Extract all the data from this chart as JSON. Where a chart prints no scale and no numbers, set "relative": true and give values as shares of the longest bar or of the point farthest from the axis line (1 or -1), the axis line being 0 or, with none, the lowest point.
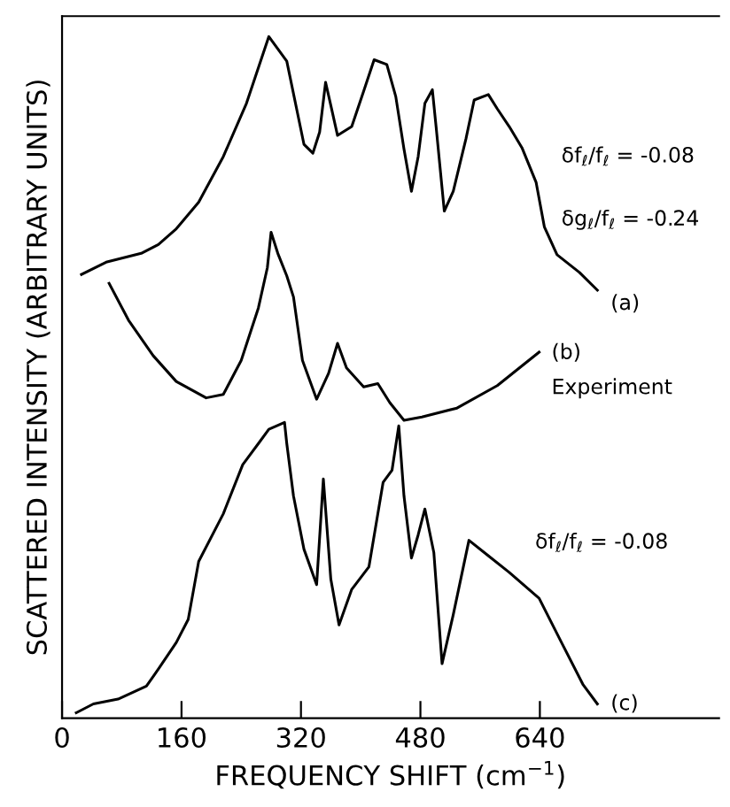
{
  "chart_data": {
    "type": "line",
    "relative": true,
    "xlabel": "FREQUENCY SHIFT (cm$^{−1}$)",
    "ylabel": "SCATTERED INTENSITY (ARBITRARY UNITS)",
    "xlim": [
      0,
      880
    ],
    "xticks": [
      0,
      160,
      320,
      480,
      640
    ],
    "grid": false,
    "marker": "none",
    "line_style": "solid",
    "series": [
      {
        "color": "#000000",
        "x": [
          26,
          59,
          106,
          129,
          153,
          183,
          216,
          247,
          277,
          301,
          324,
          336,
          345,
          353,
          360,
          369,
          388,
          404,
          418,
          435,
          447,
          458,
          468,
          477,
          486,
          496,
          501,
          512,
          524,
          541,
          552,
          571,
          583,
          599,
          616,
          635,
          646,
          663,
          693,
          717
        ],
        "values": [
          0.651,
          0.669,
          0.682,
          0.695,
          0.718,
          0.757,
          0.824,
          0.902,
          1.0,
          0.964,
          0.842,
          0.829,
          0.86,
          0.933,
          0.899,
          0.855,
          0.868,
          0.92,
          0.966,
          0.959,
          0.912,
          0.835,
          0.773,
          0.824,
          0.902,
          0.922,
          0.868,
          0.744,
          0.773,
          0.85,
          0.907,
          0.915,
          0.894,
          0.868,
          0.837,
          0.786,
          0.721,
          0.68,
          0.654,
          0.628
        ]
      },
      {
        "color": "#000000",
        "x": [
          63,
          89,
          122,
          153,
          193,
          216,
          240,
          263,
          275,
          280,
          289,
          301,
          310,
          322,
          341,
          357,
          369,
          381,
          404,
          423,
          439,
          458,
          482,
          529,
          583,
          639
        ],
        "values": [
          0.638,
          0.584,
          0.532,
          0.494,
          0.47,
          0.475,
          0.525,
          0.602,
          0.661,
          0.713,
          0.682,
          0.649,
          0.618,
          0.525,
          0.468,
          0.506,
          0.55,
          0.514,
          0.486,
          0.491,
          0.463,
          0.437,
          0.442,
          0.455,
          0.488,
          0.537
        ]
      },
      {
        "color": "#000000",
        "x": [
          19,
          42,
          75,
          113,
          129,
          153,
          169,
          183,
          216,
          242,
          263,
          277,
          298,
          301,
          310,
          324,
          341,
          350,
          360,
          371,
          388,
          411,
          430,
          442,
          451,
          458,
          468,
          477,
          486,
          498,
          509,
          524,
          545,
          569,
          599,
          639,
          669,
          698,
          717
        ],
        "values": [
          0.008,
          0.021,
          0.028,
          0.047,
          0.072,
          0.111,
          0.145,
          0.23,
          0.3,
          0.372,
          0.403,
          0.424,
          0.434,
          0.403,
          0.326,
          0.248,
          0.196,
          0.351,
          0.204,
          0.137,
          0.189,
          0.222,
          0.346,
          0.364,
          0.429,
          0.326,
          0.235,
          0.269,
          0.307,
          0.243,
          0.08,
          0.152,
          0.261,
          0.24,
          0.214,
          0.176,
          0.111,
          0.049,
          0.021
        ]
      }
    ],
    "annotations": [
      "(a)",
      "δf$_{ℓ}$/f$_{ℓ}$ = -0.08",
      "δg$_{ℓ}$/f$_{ℓ}$ = -0.24",
      "(b)",
      "Experiment",
      "δf$_{ℓ}$/f$_{ℓ}$ = -0.08",
      "(c)"
    ]
  }
}
